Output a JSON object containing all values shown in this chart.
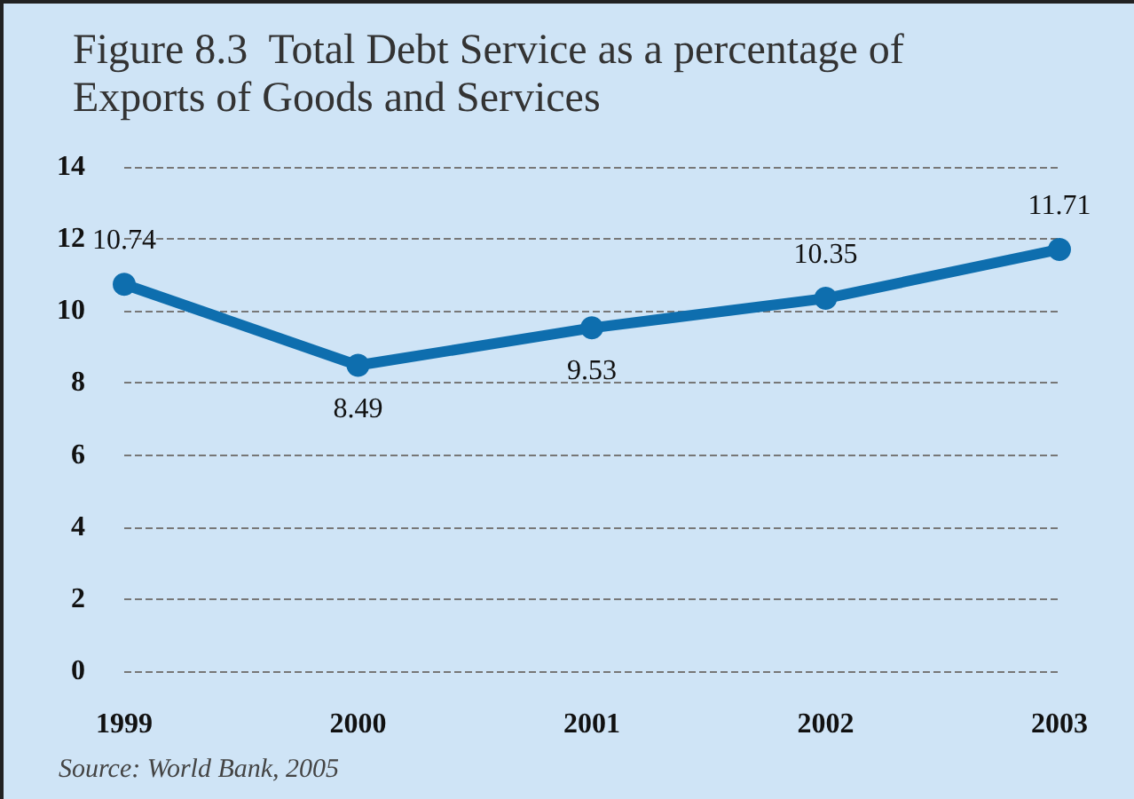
{
  "chart_data": {
    "type": "line",
    "title": "Figure 8.3  Total Debt Service as a percentage of\nExports of Goods and Services",
    "categories": [
      "1999",
      "2000",
      "2001",
      "2002",
      "2003"
    ],
    "series": [
      {
        "color": "#0e6eae",
        "values": [
          10.74,
          8.49,
          9.53,
          10.35,
          11.71
        ]
      }
    ],
    "ylim": [
      0,
      14
    ],
    "yticks": [
      0,
      2,
      4,
      6,
      8,
      10,
      12,
      14
    ],
    "grid": "y",
    "marker": "circle",
    "line_style": "solid",
    "data_labels": true,
    "annotations": [
      "Source: World Bank, 2005"
    ]
  }
}
